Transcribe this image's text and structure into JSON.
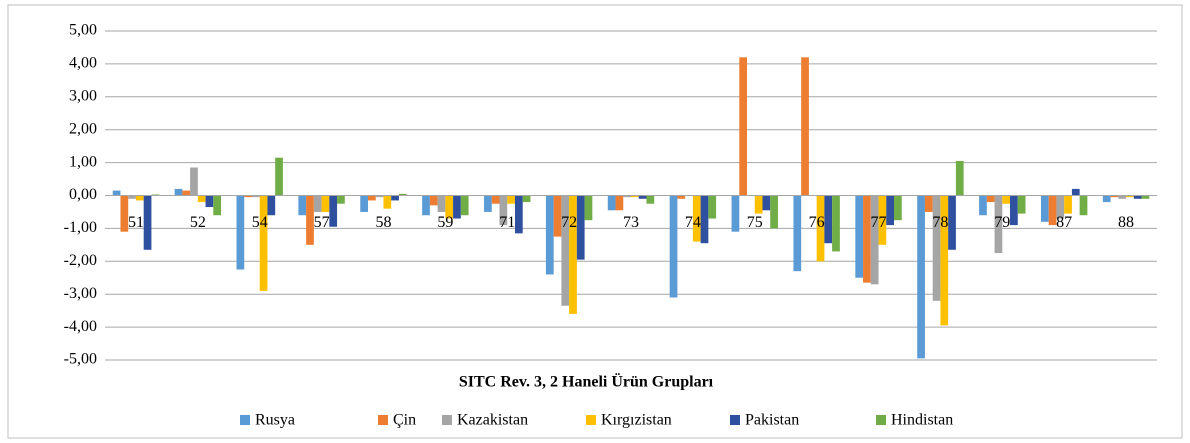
{
  "chart_data": {
    "type": "bar",
    "xlabel": "SITC Rev. 3, 2 Haneli Ürün Grupları",
    "categories": [
      "51",
      "52",
      "54",
      "57",
      "58",
      "59",
      "71",
      "72",
      "73",
      "74",
      "75",
      "76",
      "77",
      "78",
      "79",
      "87",
      "88"
    ],
    "series": [
      {
        "name": "Rusya",
        "color": "#5b9bd5",
        "values": [
          0.15,
          0.2,
          -2.25,
          -0.6,
          -0.5,
          -0.6,
          -0.5,
          -2.4,
          -0.45,
          -3.1,
          -1.1,
          -2.3,
          -2.5,
          -4.95,
          -0.6,
          -0.8,
          -0.2
        ]
      },
      {
        "name": "Çin",
        "color": "#ed7d31",
        "values": [
          -1.1,
          0.15,
          -0.05,
          -1.5,
          -0.15,
          -0.3,
          -0.25,
          -1.25,
          -0.45,
          -0.1,
          4.2,
          4.2,
          -2.65,
          -0.5,
          -0.2,
          -0.9,
          -0.05
        ]
      },
      {
        "name": "Kazakistan",
        "color": "#a5a5a5",
        "values": [
          -0.1,
          0.85,
          -0.05,
          -0.5,
          -0.05,
          -0.5,
          -0.9,
          -3.35,
          -0.05,
          0,
          0,
          0,
          -2.7,
          -3.2,
          -1.75,
          -0.7,
          -0.1
        ]
      },
      {
        "name": "Kırgızistan",
        "color": "#ffc000",
        "values": [
          -0.15,
          -0.2,
          -2.9,
          -0.5,
          -0.4,
          -0.7,
          -0.25,
          -3.6,
          -0.05,
          -1.4,
          -0.55,
          -2.0,
          -1.5,
          -3.95,
          -0.25,
          -0.55,
          -0.05
        ]
      },
      {
        "name": "Pakistan",
        "color": "#2f4f9f",
        "values": [
          -1.65,
          -0.35,
          -0.6,
          -0.95,
          -0.15,
          -0.7,
          -1.15,
          -1.95,
          -0.1,
          -1.45,
          -0.45,
          -1.45,
          -0.9,
          -1.65,
          -0.9,
          0.2,
          -0.1
        ]
      },
      {
        "name": "Hindistan",
        "color": "#70ad47",
        "values": [
          0.03,
          -0.6,
          1.15,
          -0.25,
          0.05,
          -0.6,
          -0.2,
          -0.75,
          -0.25,
          -0.7,
          -1.0,
          -1.7,
          -0.75,
          1.05,
          -0.55,
          -0.6,
          -0.1
        ]
      }
    ],
    "ylim": [
      -5,
      5
    ],
    "yticks": [
      {
        "value": -5,
        "label": "-5,00"
      },
      {
        "value": -4,
        "label": "-4,00"
      },
      {
        "value": -3,
        "label": "-3,00"
      },
      {
        "value": -2,
        "label": "-2,00"
      },
      {
        "value": -1,
        "label": "-1,00"
      },
      {
        "value": 0,
        "label": "0,00"
      },
      {
        "value": 1,
        "label": "1,00"
      },
      {
        "value": 2,
        "label": "2,00"
      },
      {
        "value": 3,
        "label": "3,00"
      },
      {
        "value": 4,
        "label": "4,00"
      },
      {
        "value": 5,
        "label": "5,00"
      }
    ],
    "grid": true,
    "legend": "bottom"
  }
}
